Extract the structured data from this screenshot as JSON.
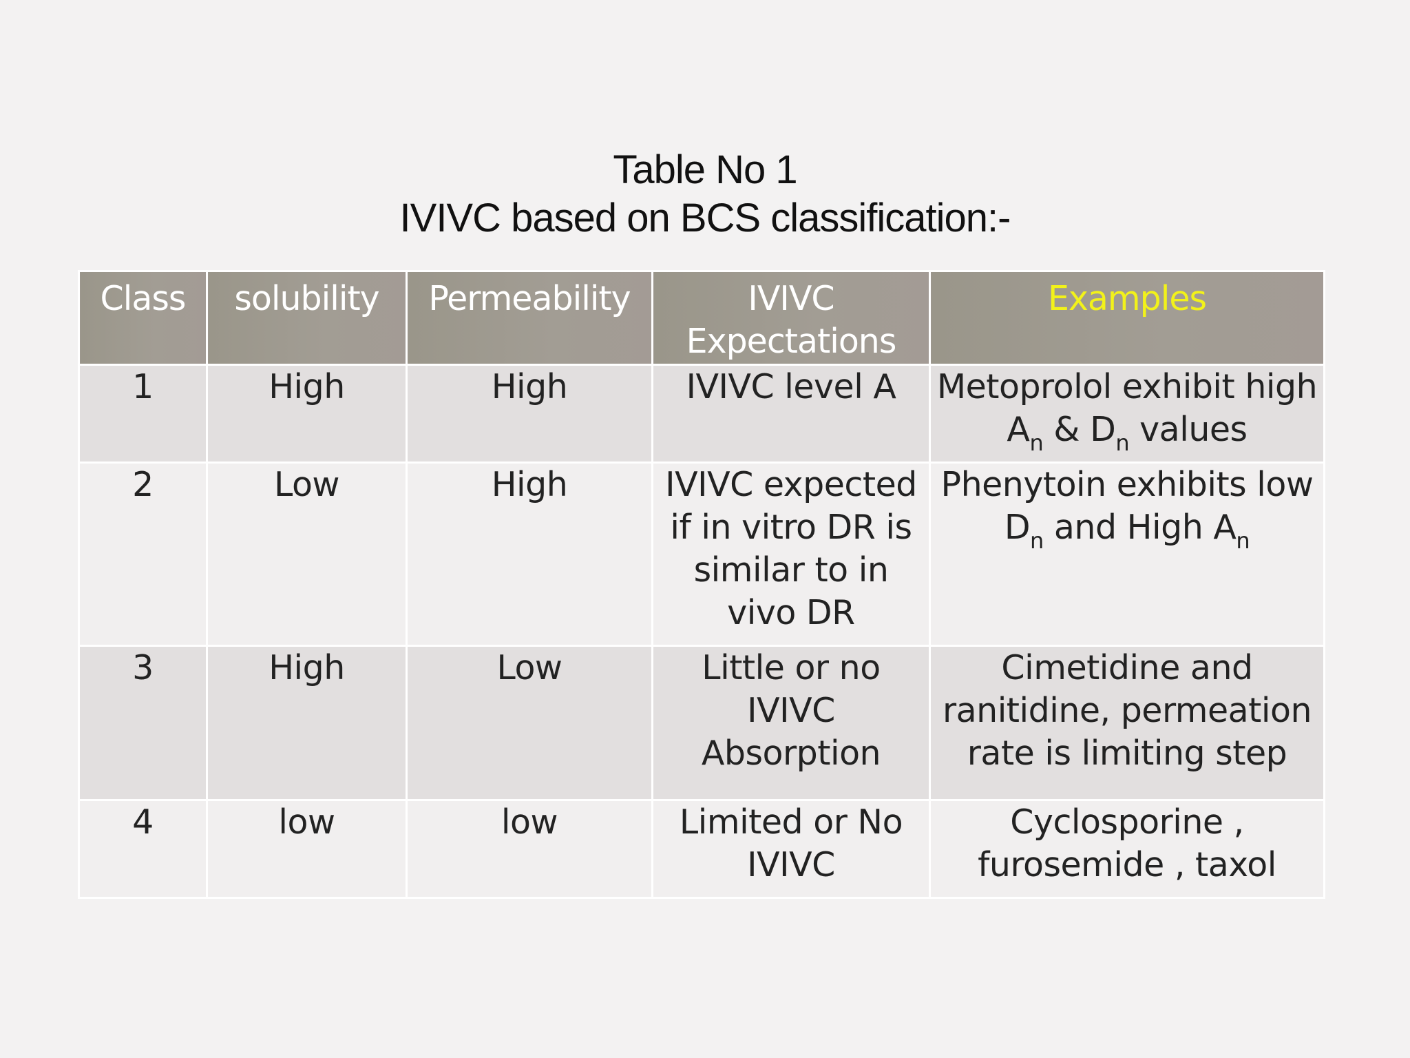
{
  "title": {
    "line1": "Table No 1",
    "line2": "IVIVC based on BCS classification:-"
  },
  "colors": {
    "header_bg": "#9f9a91",
    "header_text": "#ffffff",
    "examples_header_text": "#f2f21a",
    "row_shaded": "#e2dfdf",
    "row_light": "#f1efef",
    "background": "#f3f2f2"
  },
  "table": {
    "headers": [
      "Class",
      "solubility",
      "Permeability",
      "IVIVC Expectations",
      "Examples"
    ],
    "rows": [
      {
        "class": "1",
        "solubility": "High",
        "permeability": "High",
        "ivivc": "IVIVC  level  A",
        "example_parts": [
          "Metoprolol exhibit high A",
          "n",
          " & D",
          "n",
          " values"
        ]
      },
      {
        "class": "2",
        "solubility": "Low",
        "permeability": "High",
        "ivivc": "IVIVC expected if in vitro DR is similar to in vivo DR",
        "example_parts": [
          "Phenytoin exhibits low D",
          "n",
          " and High A",
          "n"
        ]
      },
      {
        "class": "3",
        "solubility": "High",
        "permeability": "Low",
        "ivivc": "Little or no IVIVC Absorption",
        "example": "Cimetidine and ranitidine, permeation rate is limiting step"
      },
      {
        "class": "4",
        "solubility": "low",
        "permeability": "low",
        "ivivc": "Limited or No IVIVC",
        "example": "Cyclosporine , furosemide , taxol"
      }
    ]
  }
}
